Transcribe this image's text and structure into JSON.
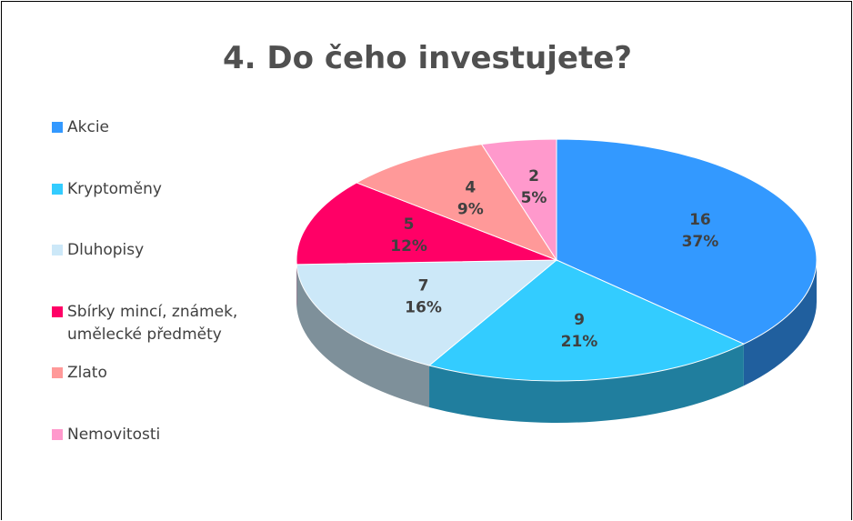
{
  "chart_data": {
    "type": "pie3d",
    "title": "4. Do čeho investujete?",
    "categories": [
      "Akcie",
      "Kryptoměny",
      "Dluhopisy",
      "Sbírky mincí, známek, umělecké předměty",
      "Zlato",
      "Nemovitosti"
    ],
    "values": [
      16,
      9,
      7,
      5,
      4,
      2
    ],
    "value_labels": [
      "37%",
      "21%",
      "16%",
      "12%",
      "9%",
      "5%"
    ],
    "colors": [
      "#3399ff",
      "#33ccff",
      "#cce8f8",
      "#ff0066",
      "#ff9999",
      "#ff99cc"
    ],
    "legend": "left"
  }
}
